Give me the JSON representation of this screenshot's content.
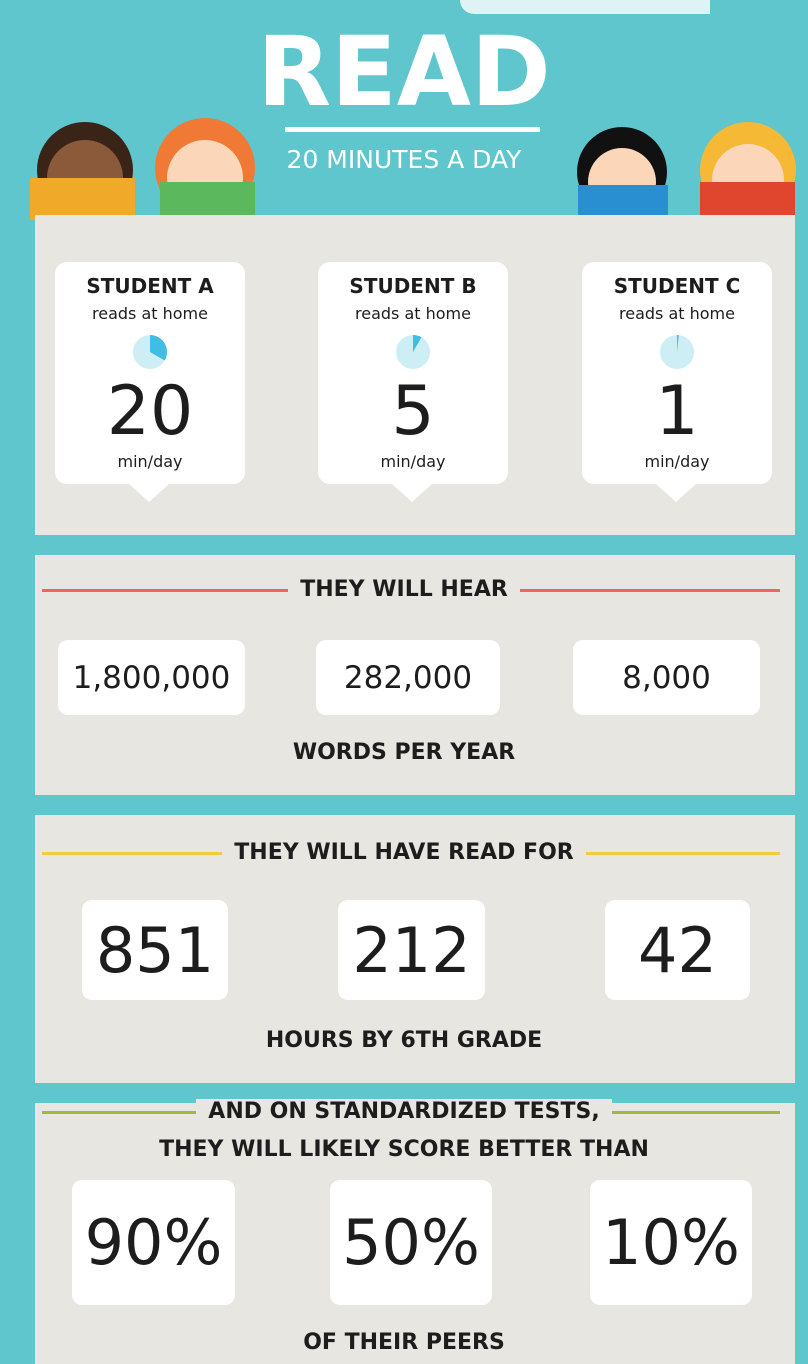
{
  "header": {
    "title": "READ",
    "subtitle": "20 MINUTES A DAY"
  },
  "students": [
    {
      "name": "STUDENT A",
      "note": "reads at home",
      "minutes": 20,
      "unit": "min/day"
    },
    {
      "name": "STUDENT B",
      "note": "reads at home",
      "minutes": 5,
      "unit": "min/day"
    },
    {
      "name": "STUDENT C",
      "note": "reads at home",
      "minutes": 1,
      "unit": "min/day"
    }
  ],
  "sections": [
    {
      "heading_lines": [
        "THEY WILL HEAR"
      ],
      "values": [
        "1,800,000",
        "282,000",
        "8,000"
      ],
      "footer": "WORDS PER YEAR"
    },
    {
      "heading_lines": [
        "THEY WILL HAVE READ FOR"
      ],
      "values": [
        "851",
        "212",
        "42"
      ],
      "footer": "HOURS BY 6TH GRADE"
    },
    {
      "heading_lines": [
        "AND ON STANDARDIZED TESTS,",
        "THEY WILL LIKELY SCORE BETTER THAN"
      ],
      "values": [
        "90%",
        "50%",
        "10%"
      ],
      "footer": "OF THEIR PEERS"
    }
  ]
}
